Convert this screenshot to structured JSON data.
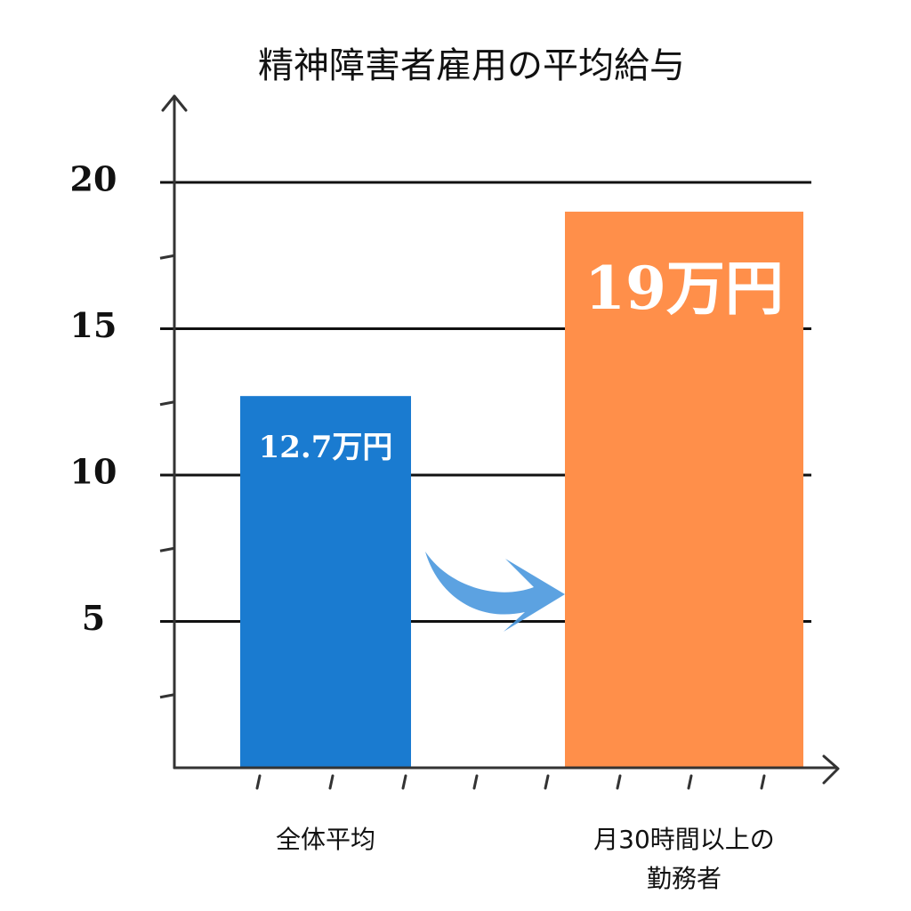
{
  "chart_data": {
    "type": "bar",
    "title": "精神障害者雇用の平均給与",
    "categories": [
      "全体平均",
      "月30時間以上の\n勤務者"
    ],
    "values": [
      12.7,
      19
    ],
    "value_labels": [
      "12.7万円",
      "19万円"
    ],
    "colors": [
      "#1a7bd0",
      "#ff8f4a"
    ],
    "ylim": [
      0,
      23
    ],
    "yticks": [
      5,
      10,
      15,
      20
    ],
    "minor_yticks": [
      2.5,
      7.5,
      12.5,
      17.5
    ],
    "grid": true
  }
}
